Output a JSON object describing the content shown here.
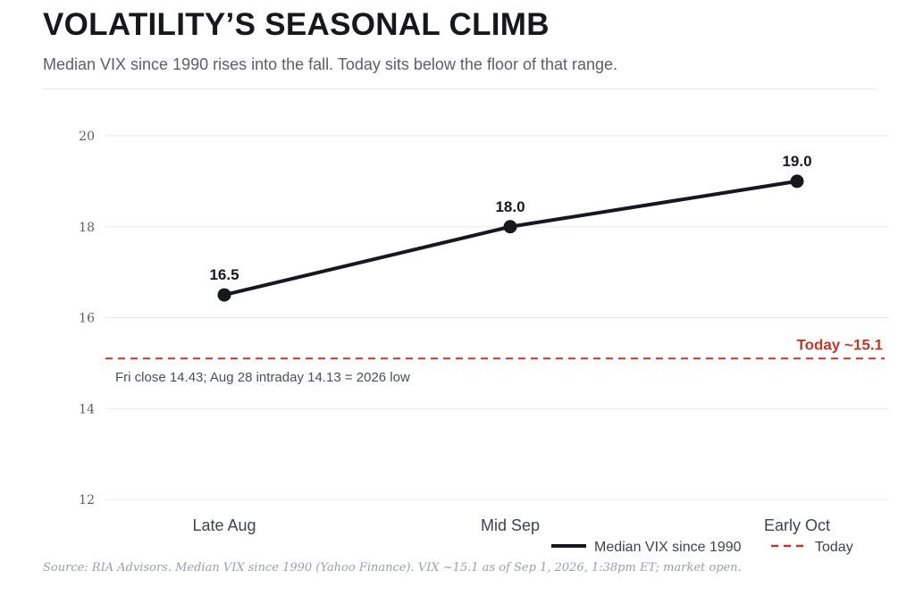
{
  "header": {
    "title": "VOLATILITY’S SEASONAL CLIMB",
    "subtitle": "Median VIX since 1990 rises into the fall. Today sits below the floor of that range."
  },
  "chart_data": {
    "type": "line",
    "categories": [
      "Late Aug",
      "Mid Sep",
      "Early Oct"
    ],
    "series": [
      {
        "name": "Median VIX since 1990",
        "values": [
          16.5,
          18.0,
          19.0
        ],
        "color": "#16181d",
        "data_labels": [
          "16.5",
          "18.0",
          "19.0"
        ]
      }
    ],
    "reference_line": {
      "name": "Today",
      "value": 15.1,
      "label": "Today ~15.1",
      "color": "#c0392b",
      "style": "dashed"
    },
    "annotation": "Fri close 14.43; Aug 28 intraday 14.13 = 2026 low",
    "ylim": [
      12,
      20
    ],
    "yticks": [
      12,
      14,
      16,
      18,
      20
    ],
    "grid": true,
    "legend": {
      "placement": "bottom-right",
      "entries": [
        "Median VIX since 1990",
        "Today"
      ]
    }
  },
  "footer": {
    "source": "Source: RIA Advisors. Median VIX since 1990 (Yahoo Finance). VIX ~15.1 as of Sep 1, 2026, 1:38pm ET; market open."
  }
}
